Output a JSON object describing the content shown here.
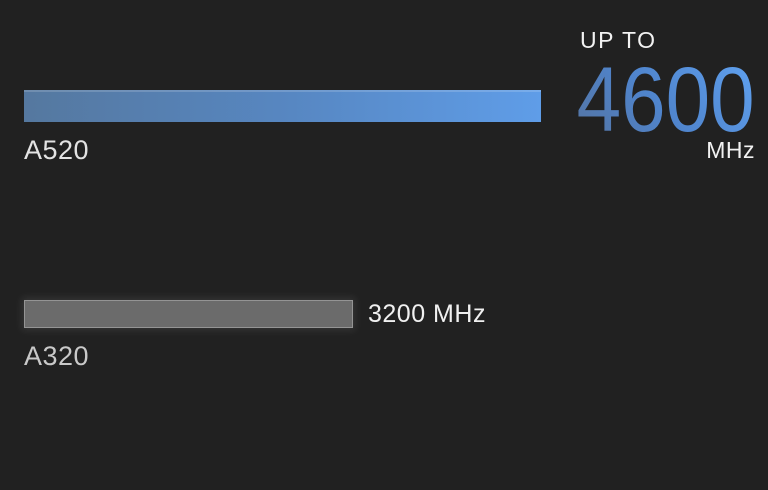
{
  "chart_data": {
    "type": "bar",
    "orientation": "horizontal",
    "categories": [
      "A520",
      "A320"
    ],
    "values": [
      4600,
      3200
    ],
    "unit": "MHz",
    "value_labels": [
      "UP TO 4600 MHz",
      "3200 MHz"
    ],
    "xlim": [
      0,
      4600
    ],
    "grid": false,
    "legend_position": "none"
  },
  "rows": {
    "a520": {
      "label": "A520",
      "callout_prefix": "UP TO",
      "callout_value": "4600",
      "callout_unit": "MHz"
    },
    "a320": {
      "label": "A320",
      "value_label": "3200 MHz"
    }
  },
  "colors": {
    "background": "#212121",
    "bar_blue_gradient_left": "#55789f",
    "bar_blue_gradient_right": "#5f9de8",
    "bar_gray": "#6b6b6b",
    "text_primary": "#f2f2f2",
    "label_a520": "#e3e3e3",
    "label_a320": "#c9c9c9",
    "big_number_bright": "#5fa0ee",
    "big_number_muted": "#55739f"
  }
}
